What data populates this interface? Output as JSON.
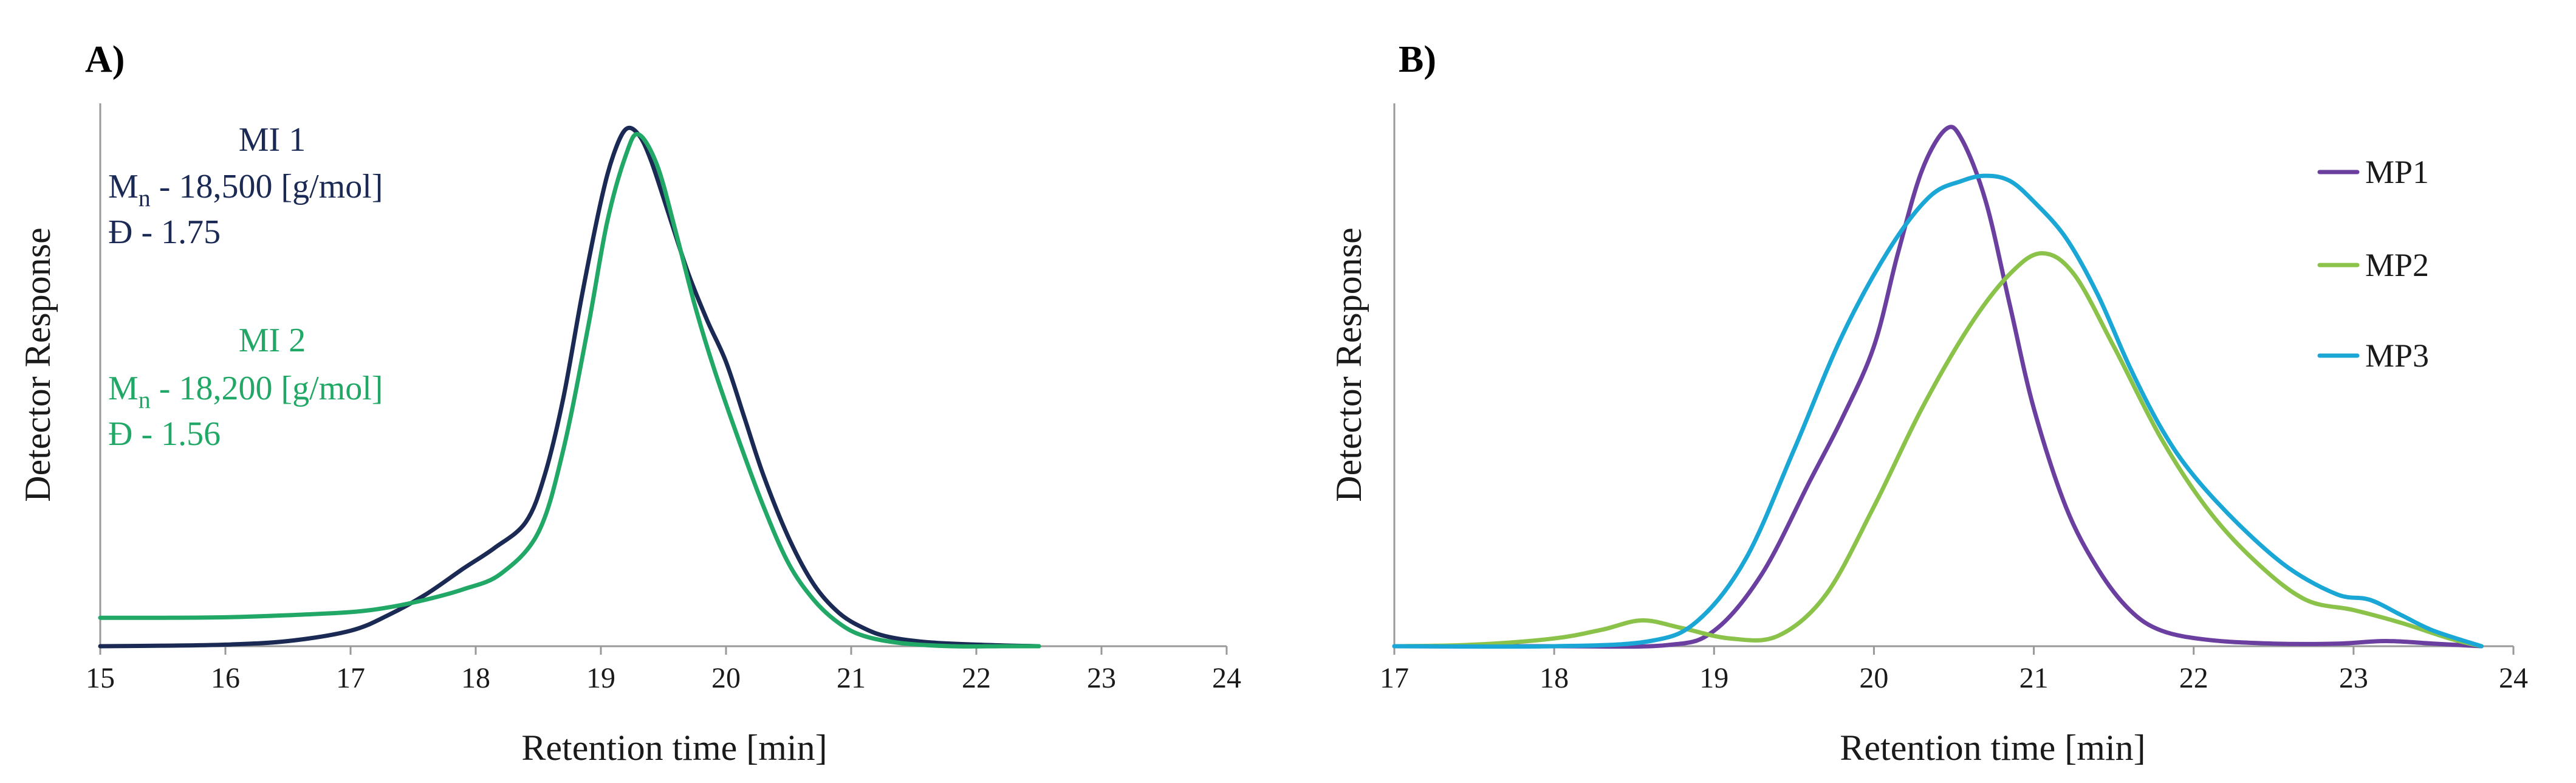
{
  "chart_data": [
    {
      "type": "line",
      "panel": "A)",
      "xlabel": "Retention time [min]",
      "ylabel": "Detector Response",
      "xlim": [
        15,
        24
      ],
      "xticks": [
        "15",
        "16",
        "17",
        "18",
        "19",
        "20",
        "21",
        "22",
        "23",
        "24"
      ],
      "ylim": [
        0,
        1.05
      ],
      "grid": false,
      "annotations": [
        {
          "lines": [
            {
              "main": "MI 1"
            },
            {
              "main": "M",
              "sub": "n",
              "rest": " - 18,500 [g/mol]"
            },
            {
              "main": "Đ - 1.75"
            }
          ],
          "color": "#1b2a55"
        },
        {
          "lines": [
            {
              "main": "MI 2"
            },
            {
              "main": "M",
              "sub": "n",
              "rest": " - 18,200 [g/mol]"
            },
            {
              "main": "Đ - 1.56"
            }
          ],
          "color": "#22a866"
        }
      ],
      "series": [
        {
          "color": "#1b2a55",
          "x": [
            15,
            15.5,
            16,
            16.5,
            17,
            17.3,
            17.6,
            17.9,
            18.15,
            18.4,
            18.55,
            18.7,
            18.85,
            19.0,
            19.1,
            19.2,
            19.3,
            19.4,
            19.55,
            19.7,
            19.85,
            20.0,
            20.15,
            20.3,
            20.5,
            20.7,
            20.9,
            21.1,
            21.3,
            21.6,
            22.0,
            22.5
          ],
          "y": [
            0.0,
            0.001,
            0.003,
            0.01,
            0.03,
            0.06,
            0.1,
            0.15,
            0.19,
            0.24,
            0.33,
            0.48,
            0.68,
            0.86,
            0.95,
            1.0,
            0.99,
            0.94,
            0.83,
            0.72,
            0.63,
            0.55,
            0.44,
            0.33,
            0.21,
            0.12,
            0.065,
            0.035,
            0.018,
            0.008,
            0.003,
            0.0
          ]
        },
        {
          "color": "#22a866",
          "x": [
            15,
            15.5,
            16,
            16.5,
            17,
            17.3,
            17.6,
            17.9,
            18.2,
            18.5,
            18.7,
            18.9,
            19.05,
            19.2,
            19.3,
            19.45,
            19.6,
            19.75,
            19.9,
            20.1,
            20.3,
            20.5,
            20.7,
            20.9,
            21.1,
            21.4,
            21.8,
            22.2,
            22.5
          ],
          "y": [
            0.055,
            0.055,
            0.056,
            0.06,
            0.066,
            0.075,
            0.09,
            0.11,
            0.14,
            0.22,
            0.38,
            0.62,
            0.82,
            0.95,
            0.99,
            0.93,
            0.8,
            0.66,
            0.54,
            0.4,
            0.27,
            0.16,
            0.09,
            0.045,
            0.02,
            0.006,
            0.0,
            0.0,
            0.0
          ]
        }
      ]
    },
    {
      "type": "line",
      "panel": "B)",
      "xlabel": "Retention time [min]",
      "ylabel": "Detector Response",
      "xlim": [
        17,
        24
      ],
      "xticks": [
        "17",
        "18",
        "19",
        "20",
        "21",
        "22",
        "23",
        "24"
      ],
      "ylim": [
        0,
        1.05
      ],
      "grid": false,
      "legend_position": "top-right",
      "series": [
        {
          "name": "MP1",
          "color": "#6b3fa0",
          "x": [
            17,
            18,
            18.7,
            19.0,
            19.3,
            19.6,
            19.8,
            20.0,
            20.15,
            20.3,
            20.45,
            20.55,
            20.7,
            20.85,
            21.0,
            21.2,
            21.4,
            21.6,
            21.8,
            22.1,
            22.5,
            22.9,
            23.2,
            23.5,
            23.8
          ],
          "y": [
            0,
            0,
            0.002,
            0.03,
            0.14,
            0.32,
            0.44,
            0.58,
            0.76,
            0.92,
            1.0,
            0.98,
            0.86,
            0.66,
            0.46,
            0.27,
            0.15,
            0.07,
            0.03,
            0.012,
            0.005,
            0.005,
            0.01,
            0.005,
            0.0
          ]
        },
        {
          "name": "MP2",
          "color": "#8bc34a",
          "x": [
            17,
            17.5,
            18.0,
            18.3,
            18.55,
            18.8,
            19.1,
            19.4,
            19.7,
            20.0,
            20.3,
            20.6,
            20.85,
            21.05,
            21.25,
            21.5,
            21.8,
            22.1,
            22.4,
            22.7,
            23.0,
            23.3,
            23.6,
            23.8
          ],
          "y": [
            0,
            0.003,
            0.015,
            0.032,
            0.05,
            0.035,
            0.015,
            0.02,
            0.1,
            0.27,
            0.46,
            0.62,
            0.72,
            0.76,
            0.72,
            0.58,
            0.4,
            0.26,
            0.16,
            0.09,
            0.07,
            0.045,
            0.015,
            0.0
          ]
        },
        {
          "name": "MP3",
          "color": "#1ba7d6",
          "x": [
            17,
            18,
            18.6,
            18.9,
            19.2,
            19.5,
            19.8,
            20.1,
            20.35,
            20.55,
            20.7,
            20.85,
            21.0,
            21.2,
            21.4,
            21.6,
            21.8,
            22.0,
            22.3,
            22.6,
            22.9,
            23.1,
            23.3,
            23.5,
            23.8
          ],
          "y": [
            0,
            0,
            0.01,
            0.05,
            0.17,
            0.38,
            0.6,
            0.77,
            0.87,
            0.9,
            0.91,
            0.9,
            0.86,
            0.79,
            0.68,
            0.54,
            0.42,
            0.33,
            0.23,
            0.15,
            0.1,
            0.09,
            0.06,
            0.03,
            0.0
          ]
        }
      ]
    }
  ]
}
